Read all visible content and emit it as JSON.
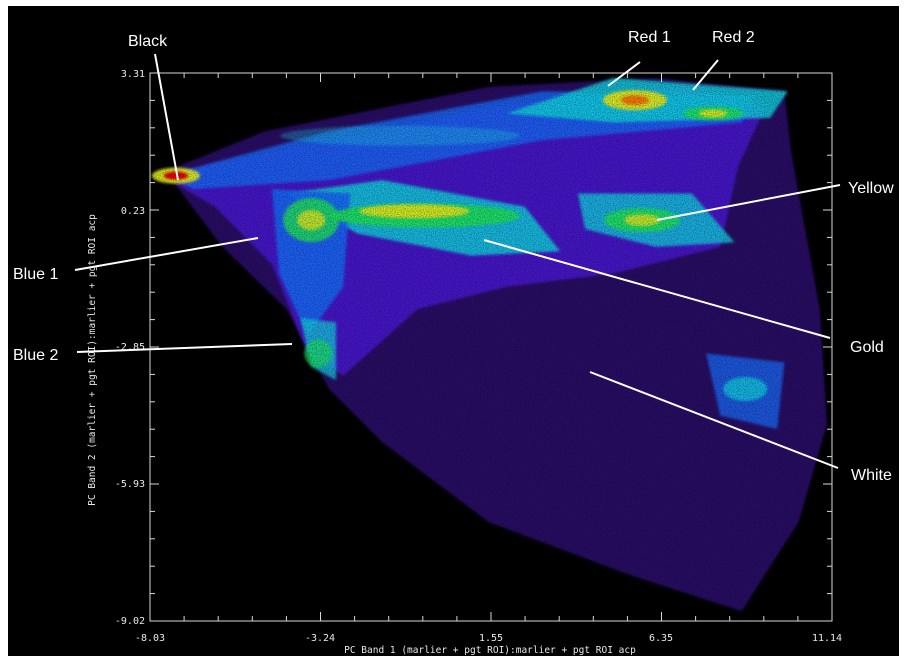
{
  "chart_data": {
    "type": "heatmap",
    "title": "",
    "xlabel": "PC Band 1 (marlier + pgt ROI):marlier + pgt ROI acp",
    "ylabel": "PC Band 2 (marlier + pgt ROI):marlier + pgt ROI acp",
    "xlim": [
      -8.03,
      11.14
    ],
    "ylim": [
      -9.02,
      3.31
    ],
    "x_ticks": [
      -8.03,
      -3.24,
      1.55,
      6.35,
      11.14
    ],
    "x_tick_labels": [
      "-8.03",
      "-3.24",
      "1.55",
      "6.35",
      "11.14"
    ],
    "y_ticks": [
      -9.02,
      -5.93,
      -2.85,
      0.23,
      3.31
    ],
    "y_tick_labels": [
      "-9.02",
      "-5.93",
      "-2.85",
      "0.23",
      "3.31"
    ],
    "grid": false,
    "colormap": [
      "#000000",
      "#2a0a6e",
      "#4a18d8",
      "#1a6aff",
      "#10d8e8",
      "#20e860",
      "#e8f020",
      "#ff7000",
      "#e80000"
    ],
    "background": "#000000",
    "clusters": [
      {
        "name": "Black",
        "x": -7.3,
        "y": 1.0,
        "density": 1.0
      },
      {
        "name": "Blue 1",
        "x": -3.4,
        "y": 0.0,
        "density": 0.75
      },
      {
        "name": "Blue 2",
        "x": -3.2,
        "y": -3.1,
        "density": 0.6
      },
      {
        "name": "Gold",
        "x": -0.5,
        "y": 0.1,
        "density": 0.8
      },
      {
        "name": "Yellow",
        "x": 5.8,
        "y": 0.0,
        "density": 0.7
      },
      {
        "name": "Red 1",
        "x": 5.6,
        "y": 2.7,
        "density": 0.85
      },
      {
        "name": "Red 2",
        "x": 7.7,
        "y": 2.4,
        "density": 0.75
      },
      {
        "name": "White",
        "x": 8.6,
        "y": -3.8,
        "density": 0.45
      }
    ],
    "annotations": [
      {
        "label": "Black",
        "points_to_x": -7.3,
        "points_to_y": 1.0
      },
      {
        "label": "Red 1",
        "points_to_x": 5.2,
        "points_to_y": 2.6
      },
      {
        "label": "Red 2",
        "points_to_x": 7.5,
        "points_to_y": 2.6
      },
      {
        "label": "Yellow",
        "points_to_x": 5.7,
        "points_to_y": -0.1
      },
      {
        "label": "Blue 1",
        "points_to_x": -4.2,
        "points_to_y": -0.5
      },
      {
        "label": "Gold",
        "points_to_x": 0.8,
        "points_to_y": -0.5
      },
      {
        "label": "Blue 2",
        "points_to_x": -3.5,
        "points_to_y": -2.8
      },
      {
        "label": "White",
        "points_to_x": 4.5,
        "points_to_y": -3.5
      }
    ]
  }
}
